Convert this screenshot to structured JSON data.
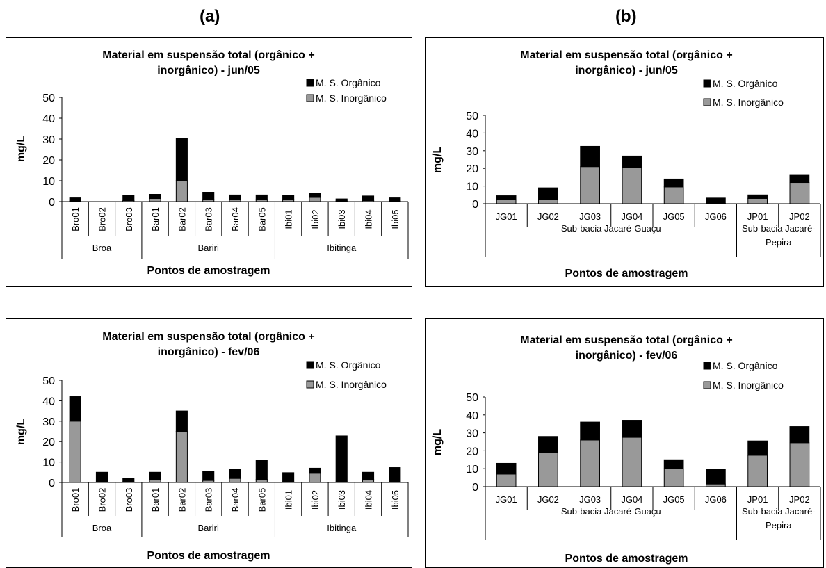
{
  "panel_labels": {
    "a": "(a)",
    "b": "(b)"
  },
  "colors": {
    "organic": "#000000",
    "inorganic": "#999999",
    "axis": "#000000"
  },
  "chart_data": [
    {
      "id": "a1",
      "type": "bar",
      "stacked": true,
      "title": "Material em suspensão total (orgânico + inorgânico) - jun/05",
      "title_lines": [
        "Material em suspensão total (orgânico +",
        "inorgânico) - jun/05"
      ],
      "ylabel": "mg/L",
      "xlabel": "Pontos de amostragem",
      "ylim": [
        0,
        50
      ],
      "yticks": [
        0,
        10,
        20,
        30,
        40,
        50
      ],
      "grid": false,
      "legend_position": "top-right",
      "categories": [
        "Bro01",
        "Bro02",
        "Bro03",
        "Bar01",
        "Bar02",
        "Bar03",
        "Bar04",
        "Bar05",
        "Ibi01",
        "Ibi02",
        "Ibi03",
        "Ibi04",
        "Ibi05"
      ],
      "groups": [
        {
          "name": "Broa",
          "count": 3
        },
        {
          "name": "Bariri",
          "count": 5
        },
        {
          "name": "Ibitinga",
          "count": 5
        }
      ],
      "series": [
        {
          "name": "M. S. Inorgânico",
          "values": [
            0.3,
            0,
            0.5,
            1.5,
            10.0,
            1.0,
            1.0,
            1.0,
            1.0,
            2.0,
            0.3,
            0.5,
            0.3
          ]
        },
        {
          "name": "M. S. Orgânico",
          "values": [
            1.5,
            0,
            2.5,
            2.0,
            20.5,
            3.5,
            2.2,
            2.2,
            2.0,
            2.0,
            1.0,
            2.2,
            1.5
          ]
        }
      ],
      "legend_order": [
        "M. S. Orgânico",
        "M. S. Inorgânico"
      ]
    },
    {
      "id": "b1",
      "type": "bar",
      "stacked": true,
      "title": "Material em suspensão total (orgânico + inorgânico) - jun/05",
      "title_lines": [
        "Material em suspensão total (orgânico +",
        "inorgânico) - jun/05"
      ],
      "ylabel": "mg/L",
      "xlabel": "Pontos de amostragem",
      "ylim": [
        0,
        50
      ],
      "yticks": [
        0,
        10,
        20,
        30,
        40,
        50
      ],
      "grid": false,
      "legend_position": "top-right",
      "categories": [
        "JG01",
        "JG02",
        "JG03",
        "JG04",
        "JG05",
        "JG06",
        "JP01",
        "JP02"
      ],
      "groups": [
        {
          "name": "Sub-bacia Jacaré-Guaçu",
          "count": 6
        },
        {
          "name": "Sub-bacia Jacaré-Pepira",
          "count": 2,
          "lines": [
            "Sub-bacia Jacaré-",
            "Pepira"
          ]
        }
      ],
      "series": [
        {
          "name": "M. S. Inorgânico",
          "values": [
            2.5,
            2.5,
            21.0,
            20.5,
            9.5,
            0.2,
            3.0,
            12.0
          ]
        },
        {
          "name": "M. S. Orgânico",
          "values": [
            2.0,
            6.5,
            11.5,
            6.5,
            4.5,
            3.0,
            2.0,
            4.5
          ]
        }
      ],
      "legend_order": [
        "M. S. Orgânico",
        "M. S. Inorgânico"
      ]
    },
    {
      "id": "a2",
      "type": "bar",
      "stacked": true,
      "title": "Material em suspensão total (orgânico + inorgânico) - fev/06",
      "title_lines": [
        "Material em suspensão total (orgânico +",
        "inorgânico) - fev/06"
      ],
      "ylabel": "mg/L",
      "xlabel": "Pontos de amostragem",
      "ylim": [
        0,
        50
      ],
      "yticks": [
        0,
        10,
        20,
        30,
        40,
        50
      ],
      "grid": false,
      "legend_position": "top-right",
      "categories": [
        "Bro01",
        "Bro02",
        "Bro03",
        "Bar01",
        "Bar02",
        "Bar03",
        "Bar04",
        "Bar05",
        "Ibi01",
        "Ibi02",
        "Ibi03",
        "Ibi04",
        "Ibi05"
      ],
      "groups": [
        {
          "name": "Broa",
          "count": 3
        },
        {
          "name": "Bariri",
          "count": 5
        },
        {
          "name": "Ibitinga",
          "count": 5
        }
      ],
      "series": [
        {
          "name": "M. S. Inorgânico",
          "values": [
            30.0,
            0.3,
            0.3,
            1.5,
            25.0,
            1.0,
            2.0,
            1.5,
            0.3,
            4.5,
            0.3,
            1.5,
            0.3
          ]
        },
        {
          "name": "M. S. Orgânico",
          "values": [
            12.0,
            4.7,
            1.7,
            3.5,
            10.0,
            4.5,
            4.5,
            9.5,
            4.5,
            2.5,
            22.5,
            3.5,
            7.0
          ]
        }
      ],
      "legend_order": [
        "M. S. Orgânico",
        "M. S. Inorgânico"
      ]
    },
    {
      "id": "b2",
      "type": "bar",
      "stacked": true,
      "title": "Material em suspensão total (orgânico + inorgânico) - fev/06",
      "title_lines": [
        "Material em suspensão total (orgânico +",
        "inorgânico) - fev/06"
      ],
      "ylabel": "mg/L",
      "xlabel": "Pontos de amostragem",
      "ylim": [
        0,
        50
      ],
      "yticks": [
        0,
        10,
        20,
        30,
        40,
        50
      ],
      "grid": false,
      "legend_position": "top-right",
      "categories": [
        "JG01",
        "JG02",
        "JG03",
        "JG04",
        "JG05",
        "JG06",
        "JP01",
        "JP02"
      ],
      "groups": [
        {
          "name": "Sub-bacia Jacaré-Guaçu",
          "count": 6
        },
        {
          "name": "Sub-bacia Jacaré-Pepira",
          "count": 2,
          "lines": [
            "Sub-bacia Jacaré-",
            "Pepira"
          ]
        }
      ],
      "series": [
        {
          "name": "M. S. Inorgânico",
          "values": [
            7.0,
            19.0,
            26.0,
            27.5,
            10.0,
            1.5,
            17.5,
            24.5
          ]
        },
        {
          "name": "M. S. Orgânico",
          "values": [
            6.0,
            9.0,
            10.0,
            9.5,
            5.0,
            8.0,
            8.0,
            9.0
          ]
        }
      ],
      "legend_order": [
        "M. S. Orgânico",
        "M. S. Inorgânico"
      ]
    }
  ]
}
